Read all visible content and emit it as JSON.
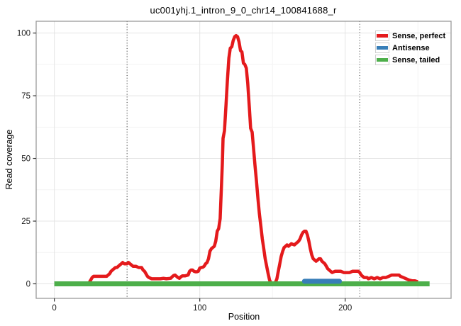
{
  "chart_data": {
    "type": "line",
    "title": "uc001yhj.1_intron_9_0_chr14_100841688_r",
    "xlabel": "Position",
    "ylabel": "Read coverage",
    "xlim": [
      -12.5,
      272.8
    ],
    "ylim": [
      -5.8,
      104.7
    ],
    "x_major_ticks": [
      0,
      100,
      200
    ],
    "y_major_ticks": [
      0,
      25,
      50,
      75,
      100
    ],
    "x_minor_gridlines": [
      50,
      150,
      250
    ],
    "y_minor_gridlines": [
      12.5,
      37.5,
      62.5,
      87.5
    ],
    "grid": {
      "major_color": "#e4e4e4",
      "minor_color": "#f3f3f3"
    },
    "panel_border_color": "#9a9a9a",
    "tick_color": "#333333",
    "tick_label_color": "#1a1a1a",
    "vlines": {
      "positions": [
        50,
        210
      ],
      "style": "dotted",
      "color": "#2a2a2a"
    },
    "legend": {
      "position": "top-right",
      "entries": [
        {
          "label": "Sense, perfect",
          "color": "#e41a1c"
        },
        {
          "label": "Antisense",
          "color": "#377eb8"
        },
        {
          "label": "Sense, tailed",
          "color": "#4daf4a"
        }
      ]
    },
    "series": [
      {
        "name": "Sense, perfect",
        "color": "#e41a1c",
        "width": 4.5,
        "linecap": "butt",
        "points": [
          [
            23,
            0
          ],
          [
            24,
            0.5
          ],
          [
            25,
            1.5
          ],
          [
            26,
            2.5
          ],
          [
            27,
            3
          ],
          [
            30,
            3
          ],
          [
            33,
            3
          ],
          [
            36,
            3
          ],
          [
            37,
            3.5
          ],
          [
            38,
            4
          ],
          [
            39,
            5
          ],
          [
            40,
            5.5
          ],
          [
            41,
            6
          ],
          [
            42,
            6.5
          ],
          [
            43,
            6.5
          ],
          [
            44,
            7
          ],
          [
            45,
            7.5
          ],
          [
            46,
            8
          ],
          [
            47,
            8.5
          ],
          [
            48,
            8
          ],
          [
            50,
            8
          ],
          [
            51,
            8.5
          ],
          [
            52,
            8
          ],
          [
            53,
            7.5
          ],
          [
            54,
            7
          ],
          [
            56,
            7
          ],
          [
            58,
            6.5
          ],
          [
            60,
            6.5
          ],
          [
            61,
            5.5
          ],
          [
            62,
            5
          ],
          [
            63,
            4
          ],
          [
            64,
            3
          ],
          [
            65,
            2.5
          ],
          [
            67,
            2
          ],
          [
            70,
            2
          ],
          [
            73,
            2
          ],
          [
            75,
            2.2
          ],
          [
            77,
            2
          ],
          [
            80,
            2.2
          ],
          [
            81,
            2.8
          ],
          [
            82,
            3.3
          ],
          [
            83,
            3.5
          ],
          [
            84,
            3
          ],
          [
            85,
            2.5
          ],
          [
            86,
            2.2
          ],
          [
            87,
            2.8
          ],
          [
            88,
            3.2
          ],
          [
            90,
            3.2
          ],
          [
            92,
            3.5
          ],
          [
            93,
            5
          ],
          [
            94,
            5.5
          ],
          [
            95,
            5.5
          ],
          [
            96,
            5
          ],
          [
            97,
            4.8
          ],
          [
            98,
            4.8
          ],
          [
            99,
            5
          ],
          [
            100,
            6.3
          ],
          [
            101,
            6.5
          ],
          [
            102,
            6.6
          ],
          [
            103,
            7
          ],
          [
            104,
            8
          ],
          [
            105,
            8.5
          ],
          [
            106,
            10
          ],
          [
            107,
            13
          ],
          [
            108,
            14
          ],
          [
            109,
            14.5
          ],
          [
            110,
            15
          ],
          [
            111,
            17
          ],
          [
            112,
            21
          ],
          [
            113,
            22
          ],
          [
            114,
            26
          ],
          [
            115,
            40
          ],
          [
            115.5,
            48
          ],
          [
            116,
            58
          ],
          [
            117,
            61
          ],
          [
            118,
            71
          ],
          [
            119,
            81
          ],
          [
            120,
            90
          ],
          [
            121,
            94
          ],
          [
            122,
            94.5
          ],
          [
            123,
            97
          ],
          [
            124,
            98.5
          ],
          [
            125,
            99
          ],
          [
            126,
            98.5
          ],
          [
            127,
            96.5
          ],
          [
            128,
            93
          ],
          [
            129,
            92.5
          ],
          [
            130,
            88
          ],
          [
            131,
            87.5
          ],
          [
            132,
            86
          ],
          [
            133,
            80
          ],
          [
            134,
            71
          ],
          [
            135,
            62
          ],
          [
            136,
            60.5
          ],
          [
            137,
            54
          ],
          [
            138,
            47
          ],
          [
            139,
            41
          ],
          [
            140,
            34
          ],
          [
            141,
            28
          ],
          [
            142,
            23
          ],
          [
            143,
            18
          ],
          [
            144,
            14
          ],
          [
            145,
            10
          ],
          [
            146,
            7
          ],
          [
            147,
            4
          ],
          [
            148,
            1.5
          ],
          [
            149,
            0.3
          ],
          [
            150,
            0
          ],
          [
            151,
            0
          ],
          [
            152,
            0.5
          ],
          [
            153,
            2
          ],
          [
            154,
            5
          ],
          [
            155,
            8
          ],
          [
            156,
            11
          ],
          [
            157,
            13
          ],
          [
            158,
            14.5
          ],
          [
            159,
            15
          ],
          [
            160,
            15.5
          ],
          [
            161,
            15
          ],
          [
            162,
            15.5
          ],
          [
            163,
            16
          ],
          [
            165,
            15.5
          ],
          [
            166,
            16
          ],
          [
            167,
            16.5
          ],
          [
            168,
            17
          ],
          [
            169,
            18
          ],
          [
            170,
            19.5
          ],
          [
            171,
            20.5
          ],
          [
            172,
            21
          ],
          [
            173,
            21
          ],
          [
            174,
            19.5
          ],
          [
            175,
            17
          ],
          [
            176,
            14
          ],
          [
            177,
            11.5
          ],
          [
            178,
            10
          ],
          [
            179,
            9.5
          ],
          [
            180,
            9
          ],
          [
            181,
            9.5
          ],
          [
            182,
            10
          ],
          [
            183,
            10
          ],
          [
            184,
            9
          ],
          [
            185,
            8.5
          ],
          [
            186,
            8
          ],
          [
            187,
            7
          ],
          [
            188,
            6
          ],
          [
            189,
            5.5
          ],
          [
            190,
            5
          ],
          [
            191,
            4.5
          ],
          [
            193,
            5
          ],
          [
            195,
            5
          ],
          [
            197,
            5
          ],
          [
            199,
            4.5
          ],
          [
            201,
            4.5
          ],
          [
            203,
            4.5
          ],
          [
            205,
            5
          ],
          [
            207,
            5
          ],
          [
            209,
            5
          ],
          [
            210,
            4.5
          ],
          [
            211,
            3.5
          ],
          [
            212,
            3
          ],
          [
            213,
            2.5
          ],
          [
            215,
            2.5
          ],
          [
            216,
            2
          ],
          [
            218,
            2.5
          ],
          [
            220,
            2
          ],
          [
            222,
            2.5
          ],
          [
            224,
            2
          ],
          [
            226,
            2.5
          ],
          [
            228,
            2.5
          ],
          [
            230,
            3
          ],
          [
            232,
            3.5
          ],
          [
            235,
            3.5
          ],
          [
            237,
            3.5
          ],
          [
            238,
            3
          ],
          [
            240,
            2.5
          ],
          [
            242,
            2
          ],
          [
            244,
            1.5
          ],
          [
            246,
            1.2
          ],
          [
            248,
            1.2
          ],
          [
            250,
            0.8
          ]
        ]
      },
      {
        "name": "Sense, tailed",
        "color": "#4daf4a",
        "width": 7,
        "linecap": "butt",
        "points": [
          [
            0,
            0
          ],
          [
            258,
            0
          ]
        ]
      },
      {
        "name": "Antisense",
        "color": "#377eb8",
        "width": 7,
        "linecap": "round",
        "points": [
          [
            172,
            1
          ],
          [
            196,
            1
          ]
        ]
      }
    ]
  }
}
